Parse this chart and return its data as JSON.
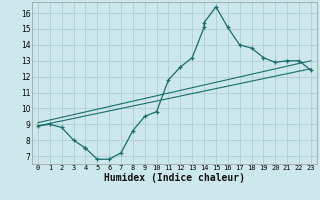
{
  "title": "",
  "xlabel": "Humidex (Indice chaleur)",
  "bg_color": "#cce8ec",
  "grid_color": "#b0cdd4",
  "line_color": "#1a6b6b",
  "xlim": [
    -0.5,
    23.5
  ],
  "ylim": [
    6.5,
    16.7
  ],
  "xticks": [
    0,
    1,
    2,
    3,
    4,
    5,
    6,
    7,
    8,
    9,
    10,
    11,
    12,
    13,
    14,
    15,
    16,
    17,
    18,
    19,
    20,
    21,
    22,
    23
  ],
  "yticks": [
    7,
    8,
    9,
    10,
    11,
    12,
    13,
    14,
    15,
    16
  ],
  "main_x": [
    0,
    1,
    2,
    3,
    4,
    4,
    5,
    6,
    7,
    8,
    9,
    10,
    11,
    12,
    13,
    14,
    14,
    15,
    16,
    17,
    18,
    19,
    20,
    21,
    22,
    23
  ],
  "main_y": [
    8.9,
    9.0,
    8.8,
    8.0,
    7.5,
    7.5,
    6.8,
    6.8,
    7.2,
    8.6,
    9.5,
    9.8,
    11.8,
    12.6,
    13.2,
    15.1,
    15.4,
    16.4,
    15.1,
    14.0,
    13.8,
    13.2,
    12.9,
    13.0,
    13.0,
    12.4
  ],
  "line1_x": [
    0,
    23
  ],
  "line1_y": [
    8.9,
    12.5
  ],
  "line2_x": [
    0,
    23
  ],
  "line2_y": [
    9.1,
    13.0
  ]
}
